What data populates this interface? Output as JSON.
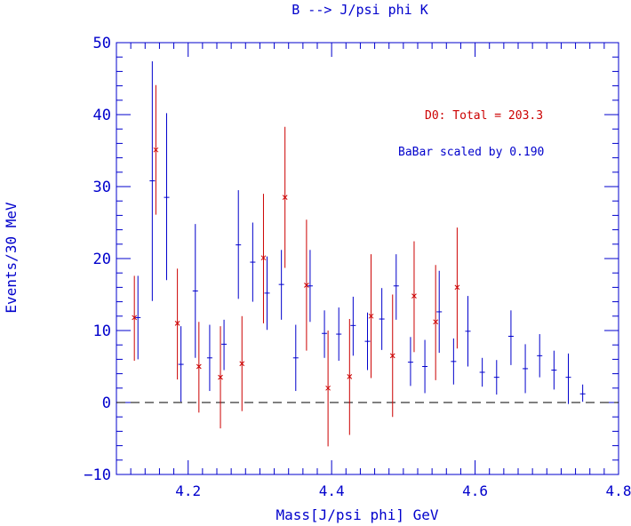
{
  "chart_data": {
    "type": "scatter",
    "title": "B --> J/psi phi K",
    "xlabel": "Mass[J/psi phi] GeV",
    "ylabel": "Events/30 MeV",
    "xlim": [
      4.1,
      4.8
    ],
    "ylim": [
      -10,
      50
    ],
    "x_ticks": [
      4.2,
      4.4,
      4.6,
      4.8
    ],
    "x_tick_labels": [
      "4.2",
      "4.4",
      "4.6",
      "4.8"
    ],
    "y_ticks": [
      -10,
      0,
      10,
      20,
      30,
      40,
      50
    ],
    "y_tick_labels": [
      "−10",
      "0",
      "10",
      "20",
      "30",
      "40",
      "50"
    ],
    "reference_line": {
      "y": 0,
      "style": "dashed"
    },
    "annotations": {
      "d0_label": "D0:  Total =  203.3",
      "babar_label": "BaBar scaled by   0.190"
    },
    "colors": {
      "axes": "#0000cc",
      "d0": "#cc0000",
      "babar": "#0000cc",
      "zero_line": "#000000"
    },
    "series": [
      {
        "name": "D0",
        "marker": "x",
        "color": "#cc0000",
        "points": [
          {
            "x": 4.125,
            "y": 11.8,
            "lo": 5.8,
            "hi": 17.6
          },
          {
            "x": 4.155,
            "y": 35.1,
            "lo": 26.1,
            "hi": 44.1
          },
          {
            "x": 4.185,
            "y": 11.0,
            "lo": 3.2,
            "hi": 18.6
          },
          {
            "x": 4.215,
            "y": 5.0,
            "lo": -1.4,
            "hi": 11.2
          },
          {
            "x": 4.245,
            "y": 3.5,
            "lo": -3.6,
            "hi": 10.6
          },
          {
            "x": 4.275,
            "y": 5.4,
            "lo": -1.2,
            "hi": 12.0
          },
          {
            "x": 4.305,
            "y": 20.1,
            "lo": 11.0,
            "hi": 29.0
          },
          {
            "x": 4.335,
            "y": 28.5,
            "lo": 18.7,
            "hi": 38.3
          },
          {
            "x": 4.365,
            "y": 16.3,
            "lo": 7.2,
            "hi": 25.4
          },
          {
            "x": 4.395,
            "y": 2.0,
            "lo": -6.1,
            "hi": 10.0
          },
          {
            "x": 4.425,
            "y": 3.6,
            "lo": -4.5,
            "hi": 11.6
          },
          {
            "x": 4.455,
            "y": 12.0,
            "lo": 3.4,
            "hi": 20.6
          },
          {
            "x": 4.485,
            "y": 6.5,
            "lo": -2.0,
            "hi": 15.0
          },
          {
            "x": 4.515,
            "y": 14.8,
            "lo": 7.0,
            "hi": 22.4
          },
          {
            "x": 4.545,
            "y": 11.2,
            "lo": 3.1,
            "hi": 19.1
          },
          {
            "x": 4.575,
            "y": 16.0,
            "lo": 7.5,
            "hi": 24.3
          }
        ]
      },
      {
        "name": "BaBar",
        "marker": "dash",
        "color": "#0000cc",
        "points": [
          {
            "x": 4.13,
            "y": 11.8,
            "lo": 6.0,
            "hi": 17.6
          },
          {
            "x": 4.15,
            "y": 30.8,
            "lo": 14.1,
            "hi": 47.4
          },
          {
            "x": 4.17,
            "y": 28.5,
            "lo": 17.0,
            "hi": 40.2
          },
          {
            "x": 4.19,
            "y": 5.3,
            "lo": 0.1,
            "hi": 10.6
          },
          {
            "x": 4.21,
            "y": 15.5,
            "lo": 6.2,
            "hi": 24.8
          },
          {
            "x": 4.23,
            "y": 6.2,
            "lo": 1.6,
            "hi": 10.8
          },
          {
            "x": 4.25,
            "y": 8.1,
            "lo": 4.5,
            "hi": 11.5
          },
          {
            "x": 4.27,
            "y": 21.9,
            "lo": 14.4,
            "hi": 29.5
          },
          {
            "x": 4.29,
            "y": 19.5,
            "lo": 14.0,
            "hi": 25.0
          },
          {
            "x": 4.31,
            "y": 15.2,
            "lo": 10.1,
            "hi": 20.3
          },
          {
            "x": 4.33,
            "y": 16.4,
            "lo": 11.5,
            "hi": 21.2
          },
          {
            "x": 4.35,
            "y": 6.2,
            "lo": 1.6,
            "hi": 10.8
          },
          {
            "x": 4.37,
            "y": 16.2,
            "lo": 11.2,
            "hi": 21.2
          },
          {
            "x": 4.39,
            "y": 9.6,
            "lo": 6.2,
            "hi": 12.8
          },
          {
            "x": 4.41,
            "y": 9.5,
            "lo": 5.8,
            "hi": 13.2
          },
          {
            "x": 4.43,
            "y": 10.7,
            "lo": 6.5,
            "hi": 14.7
          },
          {
            "x": 4.45,
            "y": 8.5,
            "lo": 4.5,
            "hi": 12.5
          },
          {
            "x": 4.47,
            "y": 11.6,
            "lo": 7.3,
            "hi": 15.9
          },
          {
            "x": 4.49,
            "y": 16.2,
            "lo": 11.5,
            "hi": 20.6
          },
          {
            "x": 4.51,
            "y": 5.6,
            "lo": 2.3,
            "hi": 9.1
          },
          {
            "x": 4.53,
            "y": 5.0,
            "lo": 1.3,
            "hi": 8.7
          },
          {
            "x": 4.55,
            "y": 12.6,
            "lo": 6.9,
            "hi": 18.3
          },
          {
            "x": 4.57,
            "y": 5.7,
            "lo": 2.5,
            "hi": 8.9
          },
          {
            "x": 4.59,
            "y": 9.9,
            "lo": 5.0,
            "hi": 14.8
          },
          {
            "x": 4.61,
            "y": 4.2,
            "lo": 2.2,
            "hi": 6.2
          },
          {
            "x": 4.63,
            "y": 3.5,
            "lo": 1.1,
            "hi": 5.9
          },
          {
            "x": 4.65,
            "y": 9.2,
            "lo": 5.2,
            "hi": 12.8
          },
          {
            "x": 4.67,
            "y": 4.7,
            "lo": 1.3,
            "hi": 8.1
          },
          {
            "x": 4.69,
            "y": 6.5,
            "lo": 3.5,
            "hi": 9.5
          },
          {
            "x": 4.71,
            "y": 4.5,
            "lo": 1.8,
            "hi": 7.2
          },
          {
            "x": 4.73,
            "y": 3.5,
            "lo": -0.2,
            "hi": 6.8
          },
          {
            "x": 4.75,
            "y": 1.2,
            "lo": 0.1,
            "hi": 2.5
          }
        ]
      }
    ]
  }
}
